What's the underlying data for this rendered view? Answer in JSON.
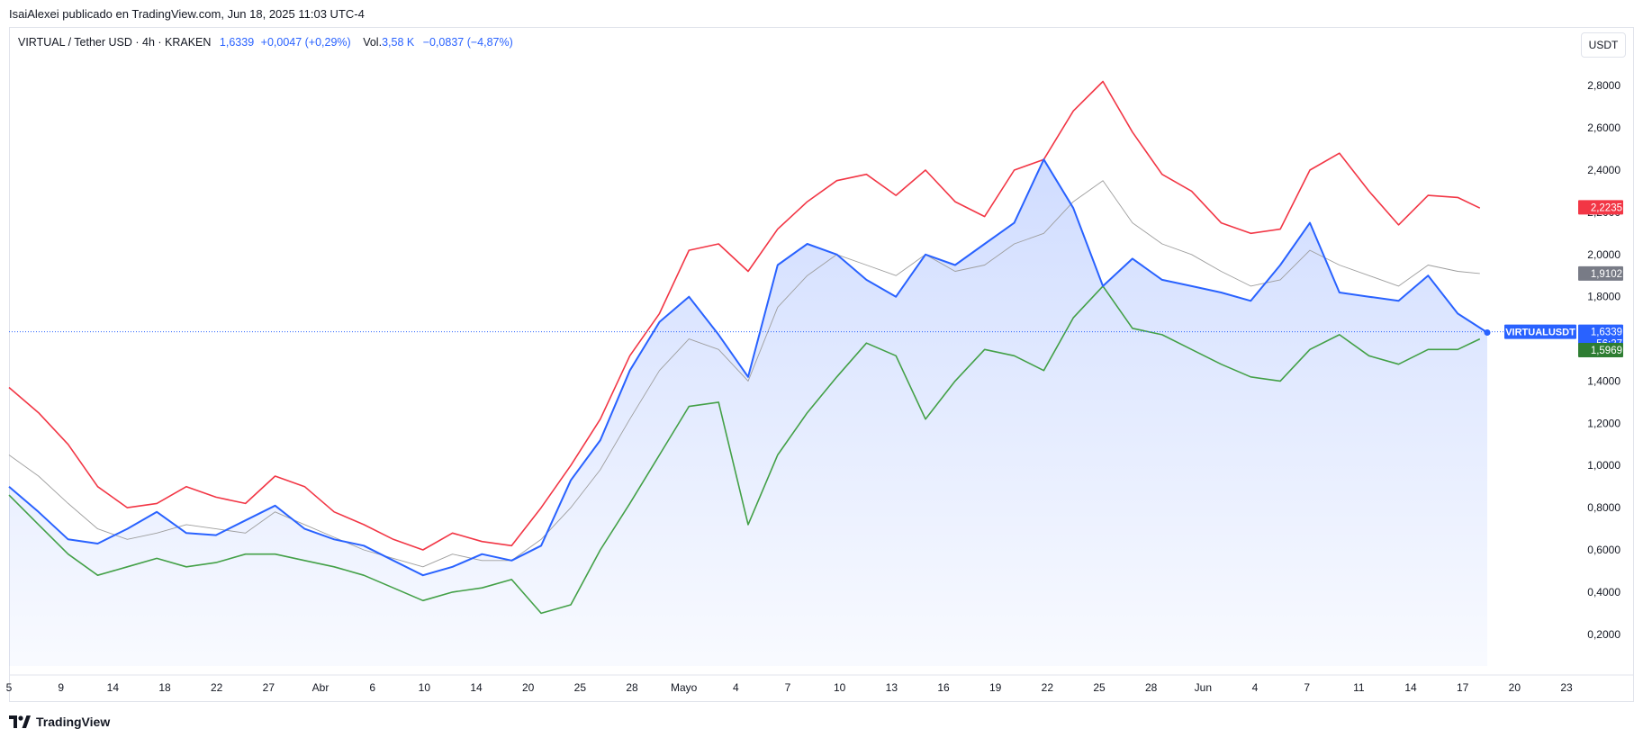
{
  "publisher_line": "IsaiAlexei publicado en TradingView.com, Jun 18, 2025 11:03 UTC-4",
  "legend": {
    "symbol": "VIRTUAL / Tether USD · 4h · KRAKEN",
    "price": "1,6339",
    "change": "+0,0047 (+0,29%)",
    "vol_label": "Vol.",
    "volume": "3,58 K",
    "vol_change": "−0,0837 (−4,87%)"
  },
  "currency_button": "USDT",
  "footer_brand": "TradingView",
  "colors": {
    "price": "#2962ff",
    "upper": "#f23645",
    "middle": "#9e9e9e",
    "lower": "#43a047",
    "fill": "#2962ff"
  },
  "chart_data": {
    "type": "line",
    "ylim": [
      0.05,
      2.95
    ],
    "y_ticks": [
      "0,2000",
      "0,4000",
      "0,6000",
      "0,8000",
      "1,0000",
      "1,2000",
      "1,4000",
      "1,6000",
      "1,8000",
      "2,0000",
      "2,2000",
      "2,4000",
      "2,6000",
      "2,8000"
    ],
    "x_ticks": [
      "5",
      "9",
      "14",
      "18",
      "22",
      "27",
      "Abr",
      "6",
      "10",
      "14",
      "20",
      "25",
      "28",
      "Mayo",
      "4",
      "7",
      "10",
      "13",
      "16",
      "19",
      "22",
      "25",
      "28",
      "Jun",
      "4",
      "7",
      "11",
      "14",
      "17",
      "20",
      "23"
    ],
    "series": [
      {
        "key": "price",
        "label": "VIRTUALUSDT",
        "last_label": "1,6339",
        "countdown": "56:27",
        "x": [
          0,
          2,
          4,
          6,
          8,
          10,
          12,
          14,
          16,
          18,
          20,
          22,
          24,
          26,
          28,
          30,
          32,
          34,
          36,
          38,
          40,
          42,
          44,
          46,
          48,
          50,
          52,
          54,
          56,
          58,
          60,
          62,
          64,
          66,
          68,
          70,
          72,
          74,
          76,
          78,
          80,
          82,
          84,
          86,
          88,
          90,
          92,
          94,
          96,
          98,
          100
        ],
        "values": [
          0.9,
          0.78,
          0.65,
          0.63,
          0.7,
          0.78,
          0.68,
          0.67,
          0.74,
          0.81,
          0.7,
          0.65,
          0.62,
          0.55,
          0.48,
          0.52,
          0.58,
          0.55,
          0.62,
          0.93,
          1.12,
          1.45,
          1.68,
          1.8,
          1.62,
          1.42,
          1.95,
          2.05,
          2.0,
          1.88,
          1.8,
          2.0,
          1.95,
          2.05,
          2.15,
          2.45,
          2.22,
          1.85,
          1.98,
          1.88,
          1.85,
          1.82,
          1.78,
          1.95,
          2.15,
          1.82,
          1.8,
          1.78,
          1.9,
          1.72,
          1.63
        ]
      },
      {
        "key": "upper",
        "last_label": "2,2235",
        "x": [
          0,
          2,
          4,
          6,
          8,
          10,
          12,
          14,
          16,
          18,
          20,
          22,
          24,
          26,
          28,
          30,
          32,
          34,
          36,
          38,
          40,
          42,
          44,
          46,
          48,
          50,
          52,
          54,
          56,
          58,
          60,
          62,
          64,
          66,
          68,
          70,
          72,
          74,
          76,
          78,
          80,
          82,
          84,
          86,
          88,
          90,
          92,
          94,
          96,
          98,
          99.5
        ],
        "values": [
          1.37,
          1.25,
          1.1,
          0.9,
          0.8,
          0.82,
          0.9,
          0.85,
          0.82,
          0.95,
          0.9,
          0.78,
          0.72,
          0.65,
          0.6,
          0.68,
          0.64,
          0.62,
          0.8,
          1.0,
          1.22,
          1.52,
          1.72,
          2.02,
          2.05,
          1.92,
          2.12,
          2.25,
          2.35,
          2.38,
          2.28,
          2.4,
          2.25,
          2.18,
          2.4,
          2.45,
          2.68,
          2.82,
          2.58,
          2.38,
          2.3,
          2.15,
          2.1,
          2.12,
          2.4,
          2.48,
          2.3,
          2.14,
          2.28,
          2.27,
          2.22
        ]
      },
      {
        "key": "middle",
        "last_label": "1,9102",
        "x": [
          0,
          2,
          4,
          6,
          8,
          10,
          12,
          14,
          16,
          18,
          20,
          22,
          24,
          26,
          28,
          30,
          32,
          34,
          36,
          38,
          40,
          42,
          44,
          46,
          48,
          50,
          52,
          54,
          56,
          58,
          60,
          62,
          64,
          66,
          68,
          70,
          72,
          74,
          76,
          78,
          80,
          82,
          84,
          86,
          88,
          90,
          92,
          94,
          96,
          98,
          99.5
        ],
        "values": [
          1.05,
          0.95,
          0.82,
          0.7,
          0.65,
          0.68,
          0.72,
          0.7,
          0.68,
          0.78,
          0.72,
          0.66,
          0.6,
          0.56,
          0.52,
          0.58,
          0.55,
          0.55,
          0.65,
          0.8,
          0.98,
          1.22,
          1.45,
          1.6,
          1.55,
          1.4,
          1.75,
          1.9,
          2.0,
          1.95,
          1.9,
          2.0,
          1.92,
          1.95,
          2.05,
          2.1,
          2.25,
          2.35,
          2.15,
          2.05,
          2.0,
          1.92,
          1.85,
          1.88,
          2.02,
          1.95,
          1.9,
          1.85,
          1.95,
          1.92,
          1.91
        ]
      },
      {
        "key": "lower",
        "last_label": "1,5969",
        "x": [
          0,
          2,
          4,
          6,
          8,
          10,
          12,
          14,
          16,
          18,
          20,
          22,
          24,
          26,
          28,
          30,
          32,
          34,
          36,
          38,
          40,
          42,
          44,
          46,
          48,
          50,
          52,
          54,
          56,
          58,
          60,
          62,
          64,
          66,
          68,
          70,
          72,
          74,
          76,
          78,
          80,
          82,
          84,
          86,
          88,
          90,
          92,
          94,
          96,
          98,
          99.5
        ],
        "values": [
          0.86,
          0.72,
          0.58,
          0.48,
          0.52,
          0.56,
          0.52,
          0.54,
          0.58,
          0.58,
          0.55,
          0.52,
          0.48,
          0.42,
          0.36,
          0.4,
          0.42,
          0.46,
          0.3,
          0.34,
          0.6,
          0.82,
          1.05,
          1.28,
          1.3,
          0.72,
          1.05,
          1.25,
          1.42,
          1.58,
          1.52,
          1.22,
          1.4,
          1.55,
          1.52,
          1.45,
          1.7,
          1.85,
          1.65,
          1.62,
          1.55,
          1.48,
          1.42,
          1.4,
          1.55,
          1.62,
          1.52,
          1.48,
          1.55,
          1.55,
          1.6
        ]
      }
    ]
  }
}
